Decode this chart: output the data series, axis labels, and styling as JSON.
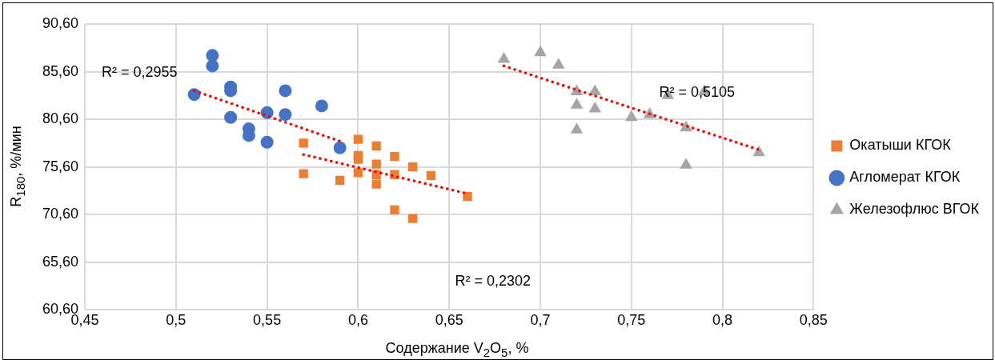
{
  "chart_data": {
    "type": "scatter",
    "xlabel": "Содержание V$_{2}$O$_{5}$, %",
    "ylabel": "R$_{180}$, %/мин",
    "xlim": [
      0.45,
      0.85
    ],
    "xticks": [
      {
        "value": 0.45,
        "label": "0,45"
      },
      {
        "value": 0.5,
        "label": "0,5"
      },
      {
        "value": 0.55,
        "label": "0,55"
      },
      {
        "value": 0.6,
        "label": "0,6"
      },
      {
        "value": 0.65,
        "label": "0,65"
      },
      {
        "value": 0.7,
        "label": "0,7"
      },
      {
        "value": 0.75,
        "label": "0,75"
      },
      {
        "value": 0.8,
        "label": "0,8"
      },
      {
        "value": 0.85,
        "label": "0,85"
      }
    ],
    "ylim": [
      60.6,
      90.6
    ],
    "yticks": [
      {
        "value": 60.6,
        "label": "60,60"
      },
      {
        "value": 65.6,
        "label": "65,60"
      },
      {
        "value": 70.6,
        "label": "70,60"
      },
      {
        "value": 75.6,
        "label": "75,60"
      },
      {
        "value": 80.6,
        "label": "80,60"
      },
      {
        "value": 85.6,
        "label": "85,60"
      },
      {
        "value": 90.6,
        "label": "90,60"
      }
    ],
    "grid": true,
    "legend": "right",
    "series": [
      {
        "name": "Окатыши КГОК",
        "color": "#ed7d31",
        "marker": "square",
        "x": [
          0.57,
          0.57,
          0.59,
          0.6,
          0.6,
          0.6,
          0.6,
          0.61,
          0.61,
          0.61,
          0.61,
          0.62,
          0.62,
          0.62,
          0.63,
          0.63,
          0.64,
          0.66
        ],
        "values": [
          78.1,
          74.9,
          74.2,
          78.5,
          76.8,
          76.4,
          75.0,
          77.8,
          75.9,
          74.8,
          73.8,
          76.7,
          74.8,
          71.1,
          75.6,
          70.2,
          74.7,
          72.5
        ]
      },
      {
        "name": "Агломерат КГОК",
        "color": "#4472c4",
        "marker": "circle",
        "x": [
          0.51,
          0.52,
          0.52,
          0.53,
          0.53,
          0.53,
          0.54,
          0.54,
          0.55,
          0.55,
          0.56,
          0.56,
          0.58,
          0.59
        ],
        "values": [
          83.2,
          87.3,
          86.2,
          84.0,
          83.6,
          80.8,
          79.6,
          78.9,
          81.3,
          78.2,
          83.6,
          81.1,
          82.0,
          77.6
        ]
      },
      {
        "name": "Железофлюс ВГОК",
        "color": "#a5a5a5",
        "marker": "triangle",
        "x": [
          0.68,
          0.7,
          0.71,
          0.72,
          0.72,
          0.72,
          0.73,
          0.73,
          0.75,
          0.76,
          0.77,
          0.78,
          0.78,
          0.79,
          0.82
        ],
        "values": [
          86.9,
          87.6,
          86.3,
          83.5,
          82.1,
          79.5,
          83.5,
          81.7,
          80.8,
          81.1,
          83.1,
          79.7,
          75.8,
          83.5,
          77.1
        ]
      },
      {
        "type": "line",
        "color": "#ff0000",
        "marker": "none",
        "line_style": "dotted",
        "x": [
          0.51,
          0.59
        ],
        "values": [
          83.6,
          78.3
        ]
      },
      {
        "type": "line",
        "color": "#ff0000",
        "marker": "none",
        "line_style": "dotted",
        "x": [
          0.57,
          0.66
        ],
        "values": [
          76.9,
          72.8
        ]
      },
      {
        "type": "line",
        "color": "#ff0000",
        "marker": "none",
        "line_style": "dotted",
        "x": [
          0.68,
          0.82
        ],
        "values": [
          86.2,
          77.4
        ]
      }
    ],
    "annotations": [
      "R² = 0,2955",
      "R² = 0,2302",
      "R² = 0,5105"
    ]
  }
}
